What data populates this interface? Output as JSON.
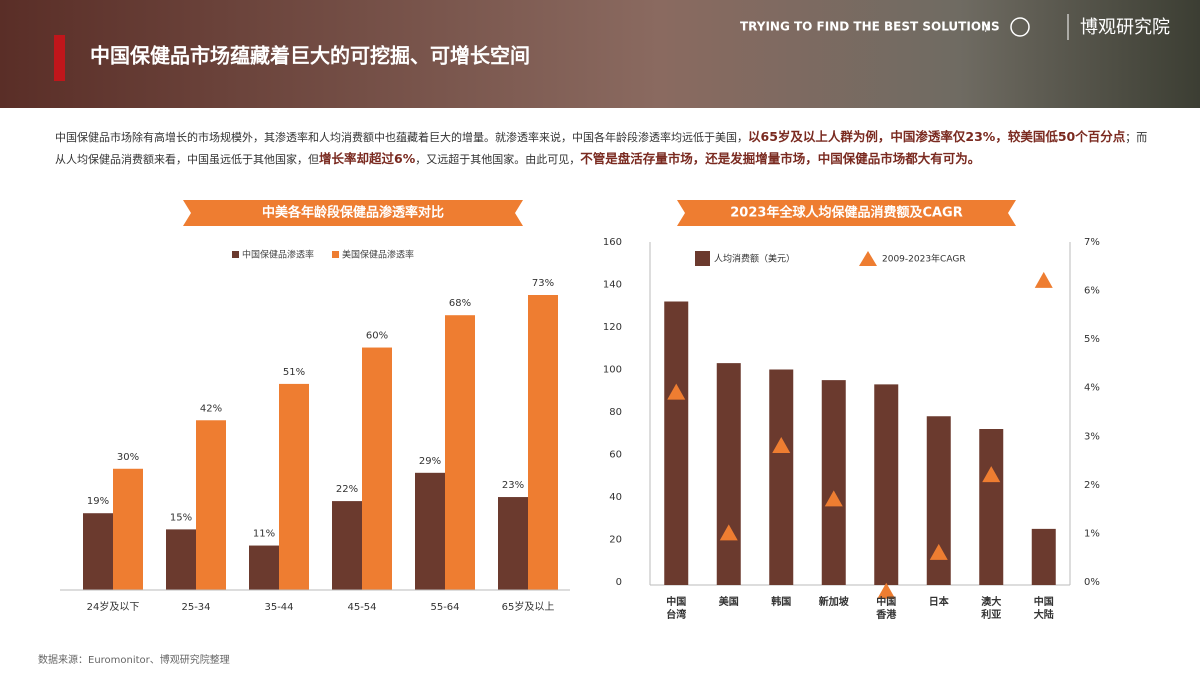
{
  "header": {
    "title": "中国保健品市场蕴藏着巨大的可挖掘、可增长空间",
    "slogan": "TRYING TO FIND THE BEST SOLUTIONS",
    "separator": "/",
    "brand": "博观研究院"
  },
  "paragraph": [
    {
      "text": "中国保健品市场除有高增长的市场规模外，其渗透率和人均消费额中也蕴藏着巨大的增量。就渗透率来说，中国各年龄段渗透率均远低于美国，",
      "bold": false
    },
    {
      "text": "以65岁及以上人群为例，中国渗透率仅23%，较美国低50个百分点",
      "bold": true
    },
    {
      "text": "；而从人均保健品消费额来看，中国虽远低于其他国家，但",
      "bold": false
    },
    {
      "text": "增长率却超过6%",
      "bold": true
    },
    {
      "text": "，又远超于其他国家。由此可见，",
      "bold": false
    },
    {
      "text": "不管是盘活存量市场，还是发掘增量市场，中国保健品市场都大有可为。",
      "bold": true
    }
  ],
  "source": "数据来源：Euromonitor、博观研究院整理",
  "chart_data": [
    {
      "type": "bar",
      "title": "中美各年龄段保健品渗透率对比",
      "categories": [
        "24岁及以下",
        "25-34",
        "35-44",
        "45-54",
        "55-64",
        "65岁及以上"
      ],
      "series": [
        {
          "name": "中国保健品渗透率",
          "color": "#6b3a2e",
          "values": [
            19,
            15,
            11,
            22,
            29,
            23
          ],
          "value_labels": [
            "19%",
            "15%",
            "11%",
            "22%",
            "29%",
            "23%"
          ]
        },
        {
          "name": "美国保健品渗透率",
          "color": "#ee7d31",
          "values": [
            30,
            42,
            51,
            60,
            68,
            73
          ],
          "value_labels": [
            "30%",
            "42%",
            "51%",
            "60%",
            "68%",
            "73%"
          ]
        }
      ]
    },
    {
      "type": "bar_line",
      "title": "2023年全球人均保健品消费额及CAGR",
      "categories": [
        "中国\n台湾",
        "美国",
        "韩国",
        "新加坡",
        "中国\n香港",
        "日本",
        "澳大\n利亚",
        "中国\n大陆"
      ],
      "series": [
        {
          "name": "人均消费额（美元）",
          "color": "#6b3a2e",
          "values": [
            132,
            103,
            100,
            95,
            93,
            78,
            72,
            25
          ]
        },
        {
          "name": "2009-2023年CAGR",
          "color": "#ee7d31",
          "axis": "y2",
          "values": [
            3.9,
            1.0,
            2.8,
            1.7,
            -0.2,
            0.6,
            2.2,
            6.2
          ]
        }
      ],
      "ylim": [
        0,
        160
      ],
      "yticks": [
        0,
        20,
        40,
        60,
        80,
        100,
        120,
        140,
        160
      ],
      "y2lim": [
        0,
        7
      ],
      "y2ticks": [
        {
          "value": 0,
          "label": "0%"
        },
        {
          "value": 1,
          "label": "1%"
        },
        {
          "value": 2,
          "label": "2%"
        },
        {
          "value": 3,
          "label": "3%"
        },
        {
          "value": 4,
          "label": "4%"
        },
        {
          "value": 5,
          "label": "5%"
        },
        {
          "value": 6,
          "label": "6%"
        },
        {
          "value": 7,
          "label": "7%"
        }
      ]
    }
  ]
}
